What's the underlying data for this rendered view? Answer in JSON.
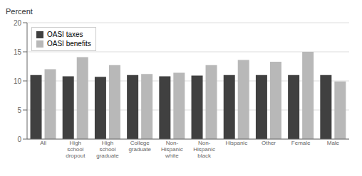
{
  "chart_data": {
    "type": "bar",
    "title": "Percent",
    "categories": [
      "All",
      "High\nschool\ndropout",
      "High\nschool\ngraduate",
      "College\ngraduate",
      "Non-\nHispanic\nwhite",
      "Non-\nHispanic\nblack",
      "Hispanic",
      "Other",
      "Female",
      "Male"
    ],
    "series": [
      {
        "name": "OASI taxes",
        "color": "#404040",
        "values": [
          11.0,
          10.8,
          10.7,
          11.0,
          10.8,
          10.9,
          11.0,
          11.0,
          11.0,
          11.0
        ]
      },
      {
        "name": "OASI benefits",
        "color": "#b8b8b8",
        "values": [
          12.0,
          14.1,
          12.7,
          11.2,
          11.4,
          12.7,
          13.6,
          13.3,
          15.0,
          9.9
        ]
      }
    ],
    "ylim": [
      0,
      20
    ],
    "yticks": [
      0,
      5,
      10,
      15,
      20
    ],
    "grid": true,
    "legend": "upper left"
  }
}
